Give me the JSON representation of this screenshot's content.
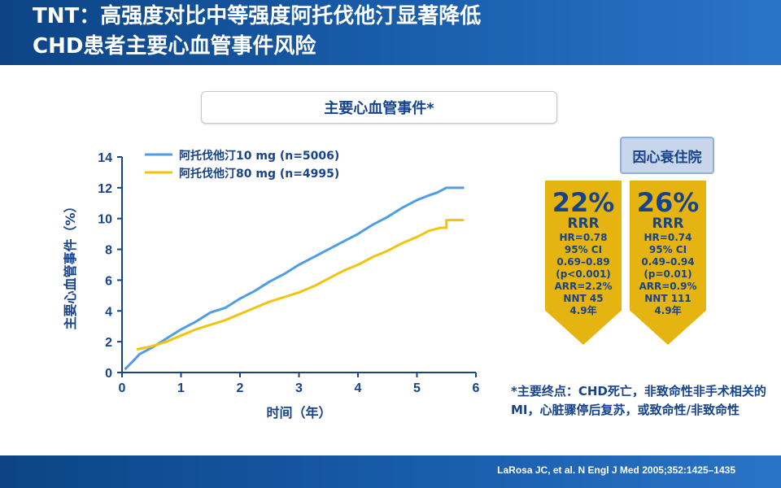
{
  "slide": {
    "title_line1": "TNT：高强度对比中等强度阿托伐他汀显著降低",
    "title_line2": "CHD患者主要心血管事件风险",
    "box_title": "主要心血管事件*",
    "study_label": "因心衰住院",
    "footnote": "*主要终点：CHD死亡，非致命性非手术相关的MI，心脏骤停后复苏，或致命性/非致命性",
    "citation": "LaRosa JC, et al. N Engl J Med 2005;352:1425–1435",
    "colors": {
      "brand_blue": "#16438a",
      "header_blue": "#1a5fae",
      "arrow_gold": "#e5b410"
    }
  },
  "stats": [
    {
      "pct": "22%",
      "rrr": "RRR",
      "lines": [
        "HR=0.78",
        "95% CI",
        "0.69–0.89",
        "(p<0.001)",
        "ARR=2.2%",
        "NNT 45",
        "4.9年"
      ]
    },
    {
      "pct": "26%",
      "rrr": "RRR",
      "lines": [
        "HR=0.74",
        "95% CI",
        "0.49–0.94",
        "(p=0.01)",
        "ARR=0.9%",
        "NNT 111",
        "4.9年"
      ]
    }
  ],
  "chart_data": {
    "type": "line",
    "xlabel": "时间（年）",
    "ylabel": "主要心血管事件（%）",
    "xlim": [
      0,
      6
    ],
    "ylim": [
      0,
      14
    ],
    "xticks": [
      0,
      1,
      2,
      3,
      4,
      5,
      6
    ],
    "yticks": [
      0,
      2,
      4,
      6,
      8,
      10,
      12,
      14
    ],
    "grid": false,
    "legend_position": "top-left",
    "series": [
      {
        "name": "阿托伐他汀10 mg (n=5006)",
        "color": "#4f9de6",
        "x": [
          0.05,
          0.15,
          0.3,
          0.5,
          0.75,
          1.0,
          1.25,
          1.5,
          1.75,
          2.0,
          2.25,
          2.5,
          2.75,
          3.0,
          3.25,
          3.5,
          3.75,
          4.0,
          4.25,
          4.5,
          4.75,
          5.0,
          5.2,
          5.35,
          5.5,
          5.8
        ],
        "y": [
          0.2,
          0.6,
          1.2,
          1.6,
          2.2,
          2.8,
          3.3,
          3.9,
          4.2,
          4.8,
          5.3,
          5.9,
          6.4,
          7.0,
          7.5,
          8.0,
          8.5,
          9.0,
          9.6,
          10.1,
          10.7,
          11.2,
          11.5,
          11.7,
          12.0,
          12.0
        ]
      },
      {
        "name": "阿托伐他汀80 mg (n=4995)",
        "color": "#f2c40e",
        "x": [
          0.25,
          0.5,
          0.75,
          1.0,
          1.25,
          1.5,
          1.75,
          2.0,
          2.25,
          2.5,
          2.75,
          3.0,
          3.25,
          3.5,
          3.75,
          4.0,
          4.25,
          4.5,
          4.75,
          5.0,
          5.2,
          5.4,
          5.5,
          5.5,
          5.8
        ],
        "y": [
          1.5,
          1.7,
          2.0,
          2.4,
          2.8,
          3.1,
          3.4,
          3.8,
          4.2,
          4.6,
          4.9,
          5.2,
          5.6,
          6.1,
          6.6,
          7.0,
          7.5,
          7.9,
          8.4,
          8.8,
          9.2,
          9.4,
          9.4,
          9.9,
          9.9
        ]
      }
    ]
  }
}
